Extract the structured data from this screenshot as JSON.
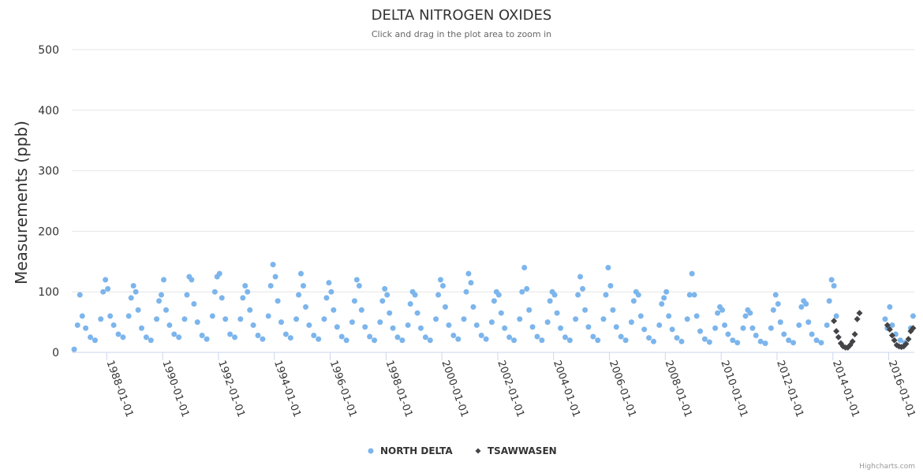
{
  "chart_data": {
    "type": "scatter",
    "title": "DELTA NITROGEN OXIDES",
    "subtitle": "Click and drag in the plot area to zoom in",
    "xlabel": "",
    "ylabel": "Measurements (ppb)",
    "xlim": [
      "1986-10-01",
      "2016-12-01"
    ],
    "ylim": [
      0,
      500
    ],
    "yticks": [
      0,
      100,
      200,
      300,
      400,
      500
    ],
    "xticks": [
      "1988-01-01",
      "1990-01-01",
      "1992-01-01",
      "1994-01-01",
      "1996-01-01",
      "1998-01-01",
      "2000-01-01",
      "2002-01-01",
      "2004-01-01",
      "2006-01-01",
      "2008-01-01",
      "2010-01-01",
      "2012-01-01",
      "2014-01-01",
      "2016-01-01"
    ],
    "grid": true,
    "legend_position": "bottom-center",
    "series": [
      {
        "name": "NORTH DELTA",
        "color": "#7cb5ec",
        "marker": "circle",
        "x": [
          "1986-11-01",
          "1986-12-15",
          "1987-01-15",
          "1987-02-15",
          "1987-04-01",
          "1987-06-01",
          "1987-08-01",
          "1987-10-15",
          "1987-11-15",
          "1987-12-15",
          "1988-01-15",
          "1988-02-15",
          "1988-04-01",
          "1988-06-01",
          "1988-08-01",
          "1988-10-15",
          "1988-11-15",
          "1988-12-15",
          "1989-01-15",
          "1989-02-15",
          "1989-04-01",
          "1989-06-01",
          "1989-08-01",
          "1989-10-15",
          "1989-11-15",
          "1989-12-15",
          "1990-01-15",
          "1990-02-15",
          "1990-04-01",
          "1990-06-01",
          "1990-08-01",
          "1990-10-15",
          "1990-11-15",
          "1990-12-15",
          "1991-01-15",
          "1991-02-15",
          "1991-04-01",
          "1991-06-01",
          "1991-08-01",
          "1991-10-15",
          "1991-11-15",
          "1991-12-15",
          "1992-01-15",
          "1992-02-15",
          "1992-04-01",
          "1992-06-01",
          "1992-08-01",
          "1992-10-15",
          "1992-11-15",
          "1992-12-15",
          "1993-01-15",
          "1993-02-15",
          "1993-04-01",
          "1993-06-01",
          "1993-08-01",
          "1993-10-15",
          "1993-11-15",
          "1993-12-15",
          "1994-01-15",
          "1994-02-15",
          "1994-04-01",
          "1994-06-01",
          "1994-08-01",
          "1994-10-15",
          "1994-11-15",
          "1994-12-15",
          "1995-01-15",
          "1995-02-15",
          "1995-04-01",
          "1995-06-01",
          "1995-08-01",
          "1995-10-15",
          "1995-11-15",
          "1995-12-15",
          "1996-01-15",
          "1996-02-15",
          "1996-04-01",
          "1996-06-01",
          "1996-08-01",
          "1996-10-15",
          "1996-11-15",
          "1996-12-15",
          "1997-01-15",
          "1997-02-15",
          "1997-04-01",
          "1997-06-01",
          "1997-08-01",
          "1997-10-15",
          "1997-11-15",
          "1997-12-15",
          "1998-01-15",
          "1998-02-15",
          "1998-04-01",
          "1998-06-01",
          "1998-08-01",
          "1998-10-15",
          "1998-11-15",
          "1998-12-15",
          "1999-01-15",
          "1999-02-15",
          "1999-04-01",
          "1999-06-01",
          "1999-08-01",
          "1999-10-15",
          "1999-11-15",
          "1999-12-15",
          "2000-01-15",
          "2000-02-15",
          "2000-04-01",
          "2000-06-01",
          "2000-08-01",
          "2000-10-15",
          "2000-11-15",
          "2000-12-15",
          "2001-01-15",
          "2001-02-15",
          "2001-04-01",
          "2001-06-01",
          "2001-08-01",
          "2001-10-15",
          "2001-11-15",
          "2001-12-15",
          "2002-01-15",
          "2002-02-15",
          "2002-04-01",
          "2002-06-01",
          "2002-08-01",
          "2002-10-15",
          "2002-11-15",
          "2002-12-15",
          "2003-01-15",
          "2003-02-15",
          "2003-04-01",
          "2003-06-01",
          "2003-08-01",
          "2003-10-15",
          "2003-11-15",
          "2003-12-15",
          "2004-01-15",
          "2004-02-15",
          "2004-04-01",
          "2004-06-01",
          "2004-08-01",
          "2004-10-15",
          "2004-11-15",
          "2004-12-15",
          "2005-01-15",
          "2005-02-15",
          "2005-04-01",
          "2005-06-01",
          "2005-08-01",
          "2005-10-15",
          "2005-11-15",
          "2005-12-15",
          "2006-01-15",
          "2006-02-15",
          "2006-04-01",
          "2006-06-01",
          "2006-08-01",
          "2006-10-15",
          "2006-11-15",
          "2006-12-15",
          "2007-01-15",
          "2007-02-15",
          "2007-04-01",
          "2007-06-01",
          "2007-08-01",
          "2007-10-15",
          "2007-11-15",
          "2007-12-15",
          "2008-01-15",
          "2008-02-15",
          "2008-04-01",
          "2008-06-01",
          "2008-08-01",
          "2008-10-15",
          "2008-11-15",
          "2008-12-15",
          "2009-01-15",
          "2009-02-15",
          "2009-04-01",
          "2009-06-01",
          "2009-08-01",
          "2009-10-15",
          "2009-11-15",
          "2009-12-15",
          "2010-01-15",
          "2010-02-15",
          "2010-04-01",
          "2010-06-01",
          "2010-08-01",
          "2010-10-15",
          "2010-11-15",
          "2010-12-15",
          "2011-01-15",
          "2011-02-15",
          "2011-04-01",
          "2011-06-01",
          "2011-08-01",
          "2011-10-15",
          "2011-11-15",
          "2011-12-15",
          "2012-01-15",
          "2012-02-15",
          "2012-04-01",
          "2012-06-01",
          "2012-08-01",
          "2012-10-15",
          "2012-11-15",
          "2012-12-15",
          "2013-01-15",
          "2013-02-15",
          "2013-04-01",
          "2013-06-01",
          "2013-08-01",
          "2013-10-15",
          "2013-11-15",
          "2013-12-15",
          "2014-01-15",
          "2014-02-15",
          "2015-11-15",
          "2015-12-15",
          "2016-01-15",
          "2016-02-15",
          "2016-04-01",
          "2016-06-01",
          "2016-08-01",
          "2016-10-15",
          "2016-11-15"
        ],
        "y": [
          5,
          45,
          95,
          60,
          40,
          25,
          20,
          55,
          100,
          120,
          105,
          60,
          45,
          30,
          25,
          60,
          90,
          110,
          100,
          70,
          40,
          25,
          20,
          55,
          85,
          95,
          120,
          70,
          45,
          30,
          25,
          55,
          95,
          125,
          120,
          80,
          50,
          28,
          22,
          60,
          100,
          125,
          130,
          90,
          55,
          30,
          25,
          55,
          90,
          110,
          100,
          70,
          45,
          28,
          22,
          60,
          110,
          145,
          125,
          85,
          50,
          30,
          24,
          55,
          95,
          130,
          110,
          75,
          45,
          28,
          22,
          55,
          90,
          115,
          100,
          70,
          42,
          26,
          20,
          50,
          85,
          120,
          110,
          70,
          42,
          26,
          20,
          50,
          85,
          105,
          95,
          65,
          40,
          25,
          20,
          45,
          80,
          100,
          95,
          65,
          40,
          25,
          20,
          55,
          95,
          120,
          110,
          75,
          45,
          28,
          22,
          55,
          100,
          130,
          115,
          75,
          45,
          28,
          22,
          50,
          85,
          100,
          95,
          65,
          40,
          25,
          20,
          55,
          100,
          140,
          105,
          70,
          42,
          26,
          20,
          50,
          85,
          100,
          95,
          65,
          40,
          25,
          20,
          55,
          95,
          125,
          105,
          70,
          42,
          26,
          20,
          55,
          95,
          140,
          110,
          70,
          42,
          26,
          20,
          50,
          85,
          100,
          95,
          60,
          38,
          24,
          18,
          45,
          80,
          90,
          100,
          60,
          38,
          24,
          18,
          55,
          95,
          130,
          95,
          60,
          35,
          22,
          17,
          40,
          65,
          75,
          70,
          45,
          30,
          20,
          16,
          40,
          60,
          70,
          65,
          40,
          28,
          18,
          15,
          40,
          70,
          95,
          80,
          50,
          30,
          20,
          16,
          45,
          75,
          85,
          80,
          50,
          30,
          20,
          16,
          45,
          85,
          120,
          110,
          60,
          55,
          40,
          75,
          45,
          30,
          20,
          16,
          40,
          60
        ]
      },
      {
        "name": "TSAWWASEN",
        "color": "#434348",
        "marker": "diamond",
        "x": [
          "2014-01-15",
          "2014-02-15",
          "2014-03-15",
          "2014-04-15",
          "2014-05-15",
          "2014-06-15",
          "2014-07-15",
          "2014-08-15",
          "2014-09-15",
          "2014-10-15",
          "2014-11-15",
          "2014-12-15",
          "2015-12-15",
          "2016-01-15",
          "2016-02-15",
          "2016-03-15",
          "2016-04-15",
          "2016-05-15",
          "2016-06-15",
          "2016-07-15",
          "2016-08-15",
          "2016-09-15",
          "2016-10-15",
          "2016-11-15"
        ],
        "y": [
          52,
          35,
          25,
          15,
          10,
          8,
          8,
          12,
          18,
          30,
          55,
          65,
          45,
          38,
          28,
          20,
          12,
          10,
          9,
          10,
          14,
          22,
          35,
          40
        ]
      }
    ]
  },
  "credits": "Highcharts.com"
}
